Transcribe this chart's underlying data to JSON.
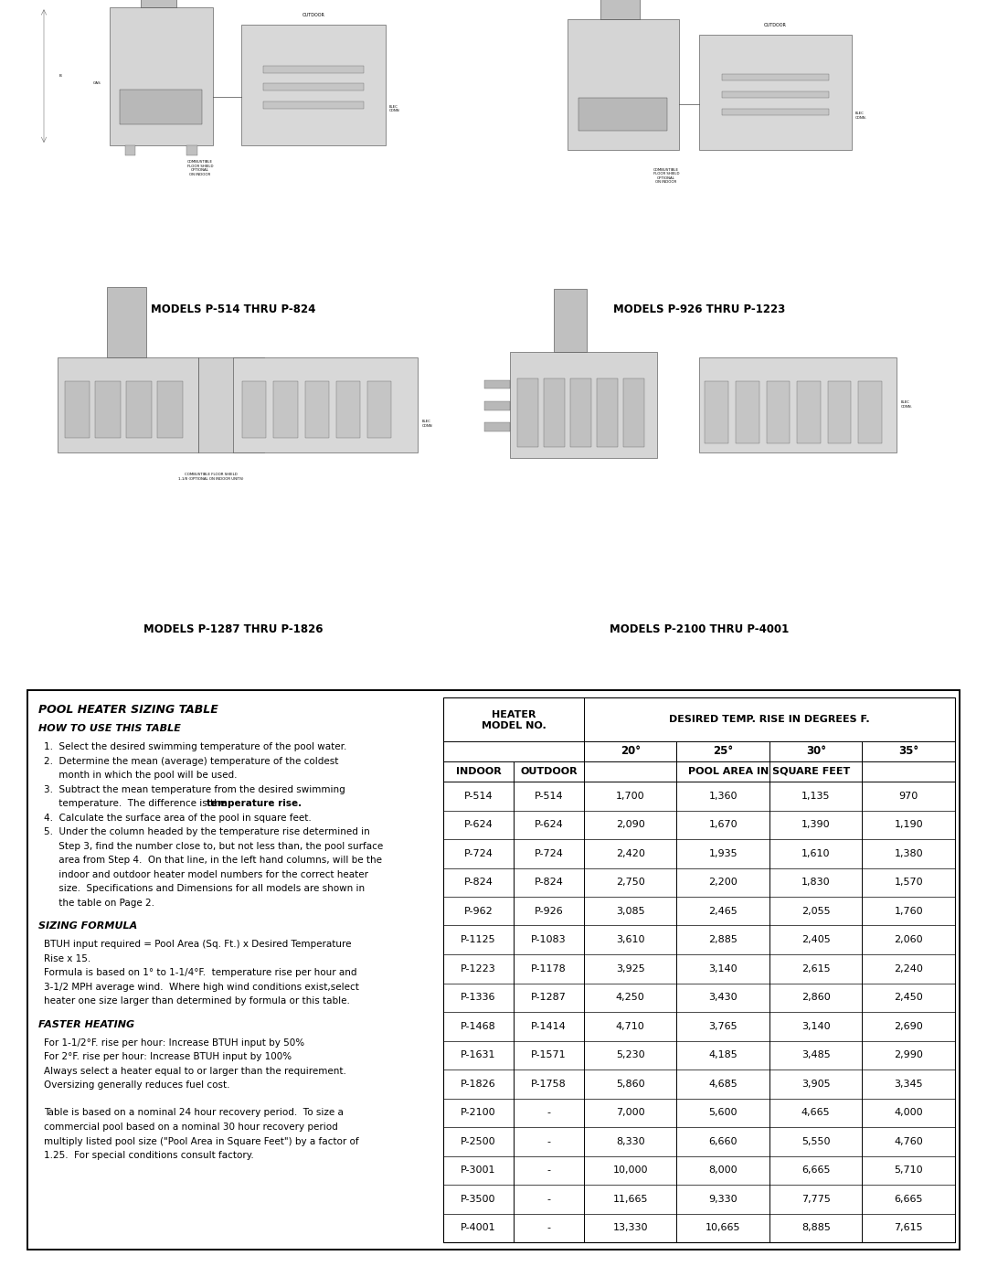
{
  "title": "POOL HEATER SIZING TABLE",
  "subtitle": "HOW TO USE THIS TABLE",
  "sizing_formula_title": "SIZING FORMULA",
  "sizing_formula_lines": [
    "BTUH input required = Pool Area (Sq. Ft.) x Desired Temperature",
    "Rise x 15.",
    "Formula is based on 1° to 1-1/4°F.  temperature rise per hour and",
    "3-1/2 MPH average wind.  Where high wind conditions exist,select",
    "heater one size larger than determined by formula or this table."
  ],
  "faster_heating_title": "FASTER HEATING",
  "faster_heating_lines": [
    "For 1-1/2°F. rise per hour: Increase BTUH input by 50%",
    "For 2°F. rise per hour: Increase BTUH input by 100%",
    "Always select a heater equal to or larger than the requirement.",
    "Oversizing generally reduces fuel cost."
  ],
  "footer_lines": [
    "Table is based on a nominal 24 hour recovery period.  To size a",
    "commercial pool based on a nominal 30 hour recovery period",
    "multiply listed pool size (\"Pool Area in Square Feet\") by a factor of",
    "1.25.  For special conditions consult factory."
  ],
  "instr_lines": [
    "1.  Select the desired swimming temperature of the pool water.",
    "2.  Determine the mean (average) temperature of the coldest",
    "     month in which the pool will be used.",
    "3.  Subtract the mean temperature from the desired swimming",
    "     temperature.  The difference is the |temperature rise.|",
    "4.  Calculate the surface area of the pool in square feet.",
    "5.  Under the column headed by the temperature rise determined in",
    "     Step 3, find the number close to, but not less than, the pool surface",
    "     area from Step 4.  On that line, in the left hand columns, will be the",
    "     indoor and outdoor heater model numbers for the correct heater",
    "     size.  Specifications and Dimensions for all models are shown in",
    "     the table on Page 2."
  ],
  "col_headers_mid": [
    "20°",
    "25°",
    "30°",
    "35°"
  ],
  "table_rows": [
    [
      "P-514",
      "P-514",
      "1,700",
      "1,360",
      "1,135",
      "970"
    ],
    [
      "P-624",
      "P-624",
      "2,090",
      "1,670",
      "1,390",
      "1,190"
    ],
    [
      "P-724",
      "P-724",
      "2,420",
      "1,935",
      "1,610",
      "1,380"
    ],
    [
      "P-824",
      "P-824",
      "2,750",
      "2,200",
      "1,830",
      "1,570"
    ],
    [
      "P-962",
      "P-926",
      "3,085",
      "2,465",
      "2,055",
      "1,760"
    ],
    [
      "P-1125",
      "P-1083",
      "3,610",
      "2,885",
      "2,405",
      "2,060"
    ],
    [
      "P-1223",
      "P-1178",
      "3,925",
      "3,140",
      "2,615",
      "2,240"
    ],
    [
      "P-1336",
      "P-1287",
      "4,250",
      "3,430",
      "2,860",
      "2,450"
    ],
    [
      "P-1468",
      "P-1414",
      "4,710",
      "3,765",
      "3,140",
      "2,690"
    ],
    [
      "P-1631",
      "P-1571",
      "5,230",
      "4,185",
      "3,485",
      "2,990"
    ],
    [
      "P-1826",
      "P-1758",
      "5,860",
      "4,685",
      "3,905",
      "3,345"
    ],
    [
      "P-2100",
      "-",
      "7,000",
      "5,600",
      "4,665",
      "4,000"
    ],
    [
      "P-2500",
      "-",
      "8,330",
      "6,660",
      "5,550",
      "4,760"
    ],
    [
      "P-3001",
      "-",
      "10,000",
      "8,000",
      "6,665",
      "5,710"
    ],
    [
      "P-3500",
      "-",
      "11,665",
      "9,330",
      "7,775",
      "6,665"
    ],
    [
      "P-4001",
      "-",
      "13,330",
      "10,665",
      "8,885",
      "7,615"
    ]
  ],
  "diagram_labels": [
    "MODELS P-514 THRU P-824",
    "MODELS P-926 THRU P-1223",
    "MODELS P-1287 THRU P-1826",
    "MODELS P-2100 THRU P-4001"
  ]
}
